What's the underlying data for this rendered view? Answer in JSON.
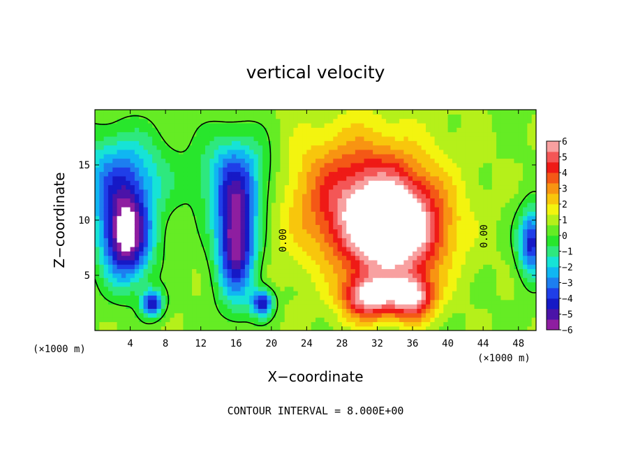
{
  "chart_data": {
    "type": "heatmap",
    "title": "vertical velocity",
    "xlabel": "X−coordinate",
    "ylabel": "Z−coordinate",
    "x_unit_label": "(×1000 m)",
    "y_unit_label": "(×1000 m)",
    "footer": "CONTOUR INTERVAL = 8.000E+00",
    "xlim": [
      0,
      50
    ],
    "ylim": [
      0,
      20
    ],
    "x_ticks": [
      4,
      8,
      12,
      16,
      20,
      24,
      28,
      32,
      36,
      40,
      44,
      48
    ],
    "y_ticks": [
      5,
      10,
      15
    ],
    "colorbar": {
      "range": [
        -6,
        6
      ],
      "ticks": [
        "6",
        "5",
        "4",
        "3",
        "2",
        "1",
        "0",
        "−1",
        "−2",
        "−3",
        "−4",
        "−5",
        "−6"
      ],
      "colors": [
        "#8e1ea0",
        "#4b13a8",
        "#1619c6",
        "#1f3ee8",
        "#1d7ef0",
        "#10b6f2",
        "#16e3d6",
        "#2ee87e",
        "#28e62c",
        "#65ec24",
        "#b5f01a",
        "#f3f40f",
        "#f8c60c",
        "#f89412",
        "#f45816",
        "#ef1a16",
        "#f45656",
        "#f8a0a0"
      ],
      "extreme_color": "#ffffff"
    },
    "contour_labels": [
      "0.00",
      "0.00"
    ],
    "contour_interval": 8.0,
    "features": [
      {
        "kind": "updraft",
        "x": 34,
        "z": 9,
        "w": 6,
        "sx": 5.5,
        "sz": 4.5
      },
      {
        "kind": "updraft",
        "x": 30,
        "z": 12,
        "w": 4,
        "sx": 8,
        "sz": 6
      },
      {
        "kind": "updraft",
        "x": 31,
        "z": 3,
        "w": 5,
        "sx": 3,
        "sz": 2
      },
      {
        "kind": "updraft",
        "x": 36,
        "z": 3,
        "w": 5,
        "sx": 2.5,
        "sz": 2
      },
      {
        "kind": "downdraft",
        "x": 3.5,
        "z": 8.5,
        "w": -7,
        "sx": 2.8,
        "sz": 4
      },
      {
        "kind": "downdraft",
        "x": 16,
        "z": 8,
        "w": -6.5,
        "sx": 2.2,
        "sz": 5
      },
      {
        "kind": "downdraft",
        "x": 49.5,
        "z": 8,
        "w": -5,
        "sx": 1.5,
        "sz": 3
      },
      {
        "kind": "downdraft",
        "x": 6.5,
        "z": 2.5,
        "w": -5,
        "sx": 1.2,
        "sz": 1.2
      },
      {
        "kind": "downdraft",
        "x": 19,
        "z": 2.5,
        "w": -5,
        "sx": 1.2,
        "sz": 1.2
      },
      {
        "kind": "downdraft",
        "x": 3,
        "z": 14,
        "w": -3.5,
        "sx": 5,
        "sz": 4
      },
      {
        "kind": "downdraft",
        "x": 16,
        "z": 14,
        "w": -3.5,
        "sx": 4,
        "sz": 4
      }
    ]
  }
}
